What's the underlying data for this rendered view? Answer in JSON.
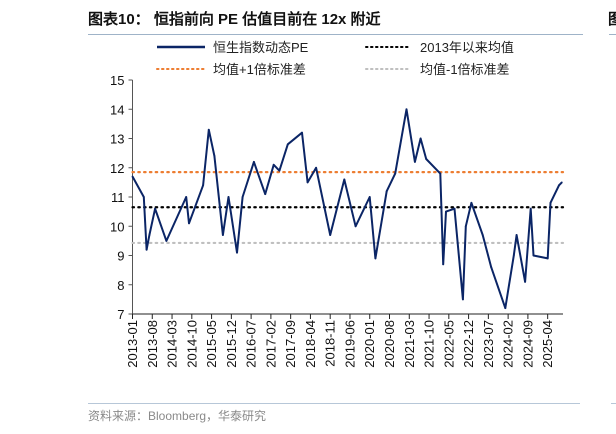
{
  "header": {
    "title": "图表10：  恒指前向 PE 估值目前在 12x 附近",
    "next_title_fragment": "图"
  },
  "footer": {
    "source": "资料来源：Bloomberg，华泰研究"
  },
  "chart_data": {
    "type": "line",
    "title": "",
    "xlabel": "",
    "ylabel": "",
    "ylim": [
      7,
      15
    ],
    "yticks": [
      "7",
      "8",
      "9",
      "10",
      "11",
      "12",
      "13",
      "14",
      "15"
    ],
    "xticks": [
      "2013-01",
      "2013-08",
      "2014-03",
      "2014-10",
      "2015-05",
      "2015-12",
      "2016-07",
      "2017-02",
      "2017-09",
      "2018-04",
      "2018-11",
      "2019-06",
      "2020-01",
      "2020-08",
      "2021-03",
      "2021-10",
      "2022-05",
      "2022-12",
      "2023-07",
      "2024-02",
      "2024-09",
      "2025-04"
    ],
    "xlim": [
      "2013-01",
      "2025-09"
    ],
    "grid": false,
    "legend_position": "top",
    "colors": {
      "pe": "#0b2566",
      "mean": "#000000",
      "plus1sd": "#ed7d31",
      "minus1sd": "#bfbfbf"
    },
    "series": [
      {
        "name": "恒生指数动态PE",
        "style": "solid",
        "x": [
          "2013-01",
          "2013-05",
          "2013-06",
          "2013-07",
          "2013-09",
          "2014-01",
          "2014-08",
          "2014-09",
          "2015-02",
          "2015-04",
          "2015-06",
          "2015-09",
          "2015-11",
          "2016-02",
          "2016-04",
          "2016-08",
          "2016-12",
          "2017-03",
          "2017-05",
          "2017-08",
          "2018-01",
          "2018-03",
          "2018-06",
          "2018-11",
          "2019-04",
          "2019-08",
          "2020-01",
          "2020-03",
          "2020-07",
          "2020-10",
          "2021-02",
          "2021-05",
          "2021-07",
          "2021-09",
          "2022-02",
          "2022-03",
          "2022-04",
          "2022-07",
          "2022-10",
          "2022-11",
          "2023-01",
          "2023-05",
          "2023-08",
          "2024-01",
          "2024-04",
          "2024-05",
          "2024-08",
          "2024-10",
          "2024-11",
          "2025-04",
          "2025-05",
          "2025-08",
          "2025-09"
        ],
        "y": [
          11.7,
          11.0,
          9.2,
          9.7,
          10.6,
          9.5,
          11.0,
          10.1,
          11.4,
          13.3,
          12.4,
          9.7,
          11.0,
          9.1,
          11.0,
          12.2,
          11.1,
          12.1,
          11.9,
          12.8,
          13.2,
          11.5,
          12.0,
          9.7,
          11.6,
          10.0,
          11.0,
          8.9,
          11.2,
          11.8,
          14.0,
          12.2,
          13.0,
          12.3,
          11.8,
          8.7,
          10.5,
          10.6,
          7.5,
          10.0,
          10.8,
          9.7,
          8.6,
          7.2,
          9.0,
          9.7,
          8.1,
          10.6,
          9.0,
          8.9,
          10.8,
          11.4,
          11.5
        ]
      },
      {
        "name": "2013年以来均值",
        "style": "dotted",
        "value": 10.65
      },
      {
        "name": "均值+1倍标准差",
        "style": "dotted",
        "value": 11.85
      },
      {
        "name": "均值-1倍标准差",
        "style": "dotted",
        "value": 9.43
      }
    ]
  }
}
